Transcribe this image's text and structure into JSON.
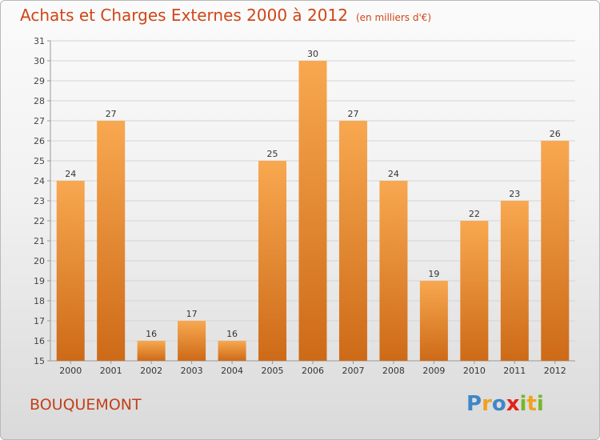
{
  "header": {
    "title": "Achats et Charges Externes 2000 à 2012",
    "unit_note": "(en milliers d'€)"
  },
  "footer": {
    "location": "BOUQUEMONT",
    "logo_text": "Proxiti"
  },
  "colors": {
    "bar_light": "#f8a850",
    "bar_dark": "#cd6a18",
    "title": "#d04516",
    "grid": "#d4d4d4"
  },
  "chart_data": {
    "type": "bar",
    "title": "Achats et Charges Externes 2000 à 2012",
    "subtitle": "(en milliers d'€)",
    "categories": [
      "2000",
      "2001",
      "2002",
      "2003",
      "2004",
      "2005",
      "2006",
      "2007",
      "2008",
      "2009",
      "2010",
      "2011",
      "2012"
    ],
    "values": [
      24,
      27,
      16,
      17,
      16,
      25,
      30,
      27,
      24,
      19,
      22,
      23,
      26
    ],
    "ylim": [
      15,
      31
    ],
    "yticks": [
      15,
      16,
      17,
      18,
      19,
      20,
      21,
      22,
      23,
      24,
      25,
      26,
      27,
      28,
      29,
      30,
      31
    ],
    "grid": true,
    "legend": "none"
  }
}
